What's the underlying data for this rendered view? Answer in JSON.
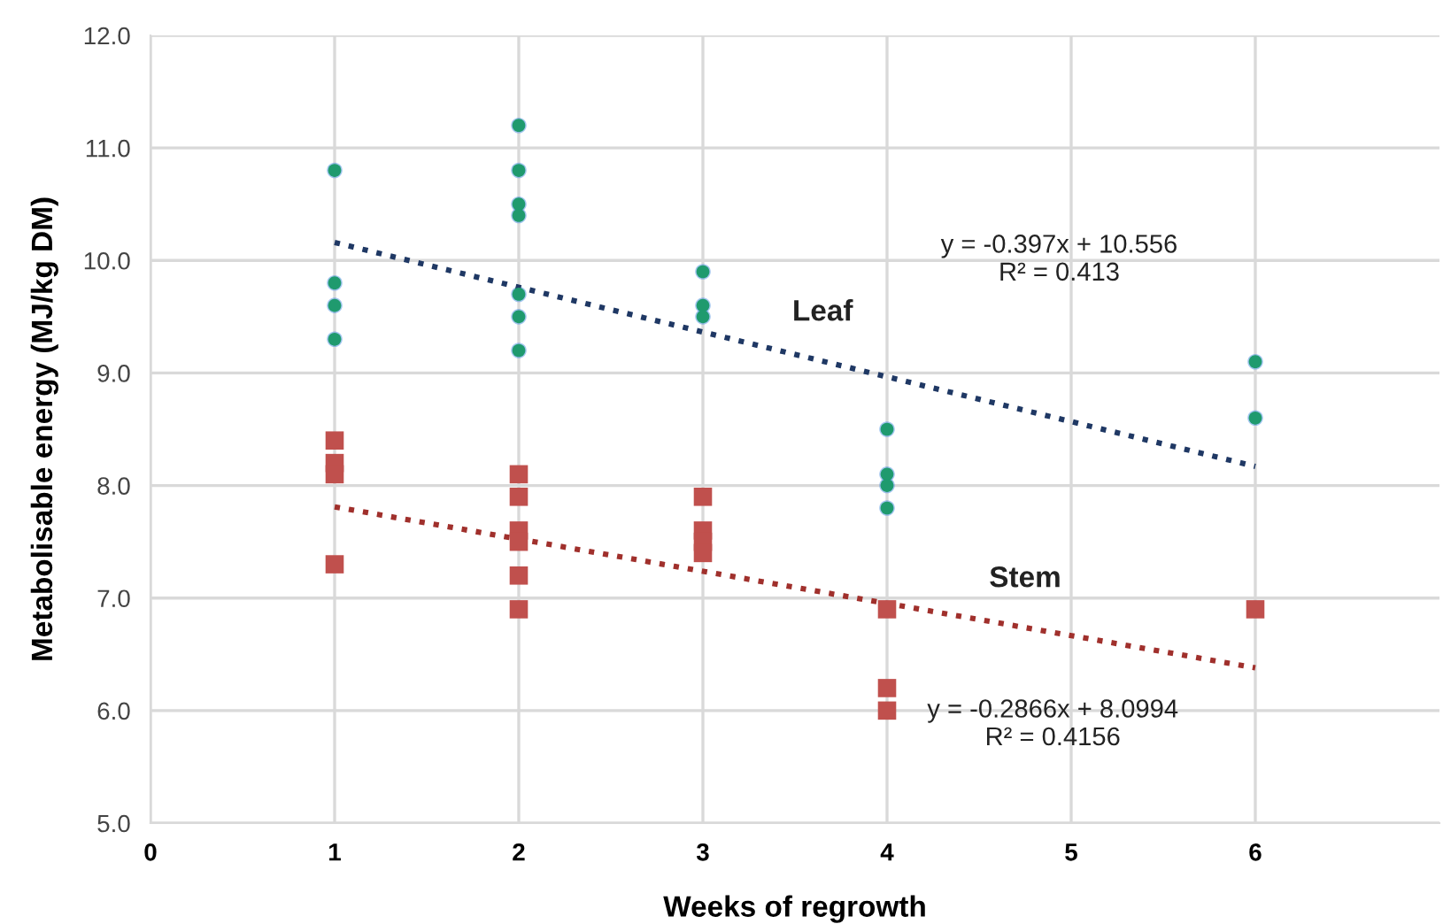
{
  "chart_data": {
    "type": "scatter",
    "xlabel": "Weeks of regrowth",
    "ylabel": "Metabolisable energy (MJ/kg DM)",
    "series": [
      {
        "color": "#1f9a6e",
        "marker": "circle",
        "x": [
          1,
          1,
          1,
          1,
          2,
          2,
          2,
          2,
          2,
          2,
          2,
          3,
          3,
          3,
          4,
          4,
          4,
          4,
          6,
          6
        ],
        "values": [
          10.8,
          9.8,
          9.6,
          9.3,
          11.2,
          10.8,
          10.5,
          10.4,
          9.7,
          9.5,
          9.2,
          9.9,
          9.6,
          9.5,
          8.5,
          8.1,
          8.0,
          7.8,
          9.1,
          8.6
        ]
      },
      {
        "color": "#c0504d",
        "marker": "square",
        "x": [
          1,
          1,
          1,
          1,
          2,
          2,
          2,
          2,
          2,
          2,
          3,
          3,
          3,
          3,
          4,
          4,
          4,
          6
        ],
        "values": [
          8.4,
          8.2,
          8.1,
          7.3,
          8.1,
          7.9,
          7.6,
          7.5,
          7.2,
          6.9,
          7.9,
          7.6,
          7.5,
          7.4,
          6.9,
          6.2,
          6.0,
          6.9
        ]
      },
      {
        "type": "line",
        "name": "Leaf",
        "color": "#1f3864",
        "line_style": "dotted",
        "x": [
          1,
          6
        ],
        "values": [
          10.16,
          8.17
        ]
      },
      {
        "type": "line",
        "name": "Stem",
        "color": "#a0302c",
        "line_style": "dotted",
        "x": [
          1,
          6
        ],
        "values": [
          7.81,
          6.38
        ]
      }
    ],
    "annotations": [
      "y = -0.397x + 10.556\nR² = 0.413",
      "y = -0.2866x + 8.0994\nR² = 0.4156"
    ],
    "xlim": [
      0,
      7
    ],
    "xticks": [
      0,
      1,
      2,
      3,
      4,
      5,
      6
    ],
    "ylim": [
      5,
      12
    ],
    "yticks": [
      {
        "value": 5,
        "label": "5.0"
      },
      {
        "value": 6,
        "label": "6.0"
      },
      {
        "value": 7,
        "label": "7.0"
      },
      {
        "value": 8,
        "label": "8.0"
      },
      {
        "value": 9,
        "label": "9.0"
      },
      {
        "value": 10,
        "label": "10.0"
      },
      {
        "value": 11,
        "label": "11.0"
      },
      {
        "value": 12,
        "label": "12.0"
      }
    ],
    "grid": true
  }
}
